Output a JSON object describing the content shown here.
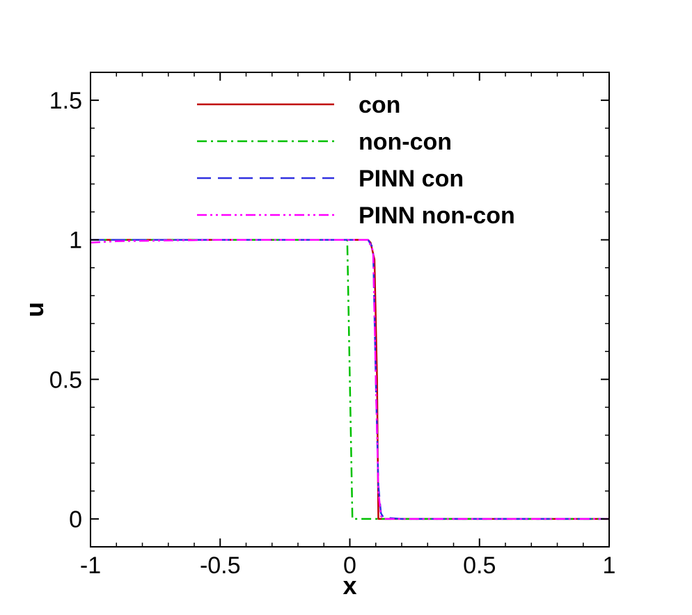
{
  "chart_data": {
    "type": "line",
    "xlabel": "x",
    "ylabel": "u",
    "xlim": [
      -1,
      1
    ],
    "ylim": [
      -0.1,
      1.6
    ],
    "grid": false,
    "legend_position": "top-center",
    "x_ticks": [
      -1,
      -0.5,
      0,
      0.5,
      1
    ],
    "x_tick_labels": [
      "-1",
      "-0.5",
      "0",
      "0.5",
      "1"
    ],
    "y_ticks": [
      0,
      0.5,
      1,
      1.5
    ],
    "y_tick_labels": [
      "0",
      "0.5",
      "1",
      "1.5"
    ],
    "series": [
      {
        "name": "con",
        "color": "#c00000",
        "dash": "solid",
        "x": [
          -1,
          -0.5,
          0,
          0.07,
          0.08,
          0.095,
          0.105,
          0.11,
          1
        ],
        "y": [
          1,
          1,
          1,
          1,
          0.99,
          0.93,
          0.5,
          0,
          0
        ]
      },
      {
        "name": "non-con",
        "color": "#00c000",
        "dash": "dash-dot",
        "x": [
          -1,
          -0.5,
          -0.01,
          0,
          0.01,
          1
        ],
        "y": [
          1,
          1,
          1,
          0.5,
          0,
          0
        ]
      },
      {
        "name": "PINN con",
        "color": "#3030e0",
        "dash": "dashed",
        "x": [
          -1,
          -0.5,
          0,
          0.07,
          0.09,
          0.1,
          0.11,
          0.12,
          0.13,
          0.2,
          1
        ],
        "y": [
          1,
          1,
          1,
          1,
          0.97,
          0.5,
          0.12,
          0.02,
          0.005,
          0,
          0
        ]
      },
      {
        "name": "PINN non-con",
        "color": "#ff00ff",
        "dash": "dash-dot-dot",
        "x": [
          -1,
          -0.9,
          -0.5,
          0,
          0.07,
          0.09,
          0.1,
          0.11,
          0.12,
          0.13,
          0.2,
          1
        ],
        "y": [
          0.99,
          0.995,
          1,
          1,
          1,
          0.96,
          0.5,
          0.1,
          0.01,
          0,
          0,
          0
        ]
      }
    ]
  }
}
